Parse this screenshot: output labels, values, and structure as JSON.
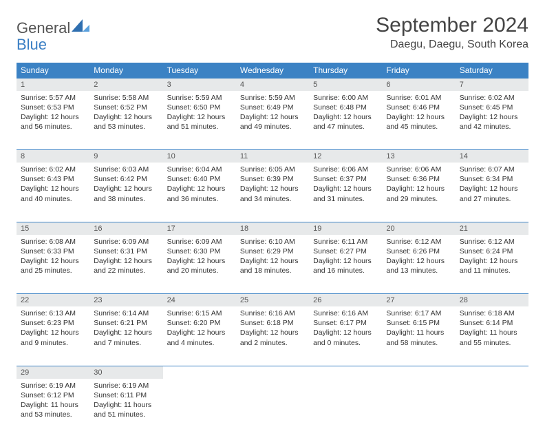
{
  "logo": {
    "general": "General",
    "blue": "Blue"
  },
  "title": "September 2024",
  "location": "Daegu, Daegu, South Korea",
  "colors": {
    "header_bg": "#3b82c4",
    "header_text": "#ffffff",
    "daynum_bg": "#e7e9ea",
    "row_border": "#3b82c4",
    "page_bg": "#ffffff",
    "logo_blue": "#3b7fc4",
    "text": "#333333"
  },
  "weekdays": [
    "Sunday",
    "Monday",
    "Tuesday",
    "Wednesday",
    "Thursday",
    "Friday",
    "Saturday"
  ],
  "weeks": [
    [
      {
        "n": "1",
        "sunrise": "Sunrise: 5:57 AM",
        "sunset": "Sunset: 6:53 PM",
        "daylight": "Daylight: 12 hours and 56 minutes."
      },
      {
        "n": "2",
        "sunrise": "Sunrise: 5:58 AM",
        "sunset": "Sunset: 6:52 PM",
        "daylight": "Daylight: 12 hours and 53 minutes."
      },
      {
        "n": "3",
        "sunrise": "Sunrise: 5:59 AM",
        "sunset": "Sunset: 6:50 PM",
        "daylight": "Daylight: 12 hours and 51 minutes."
      },
      {
        "n": "4",
        "sunrise": "Sunrise: 5:59 AM",
        "sunset": "Sunset: 6:49 PM",
        "daylight": "Daylight: 12 hours and 49 minutes."
      },
      {
        "n": "5",
        "sunrise": "Sunrise: 6:00 AM",
        "sunset": "Sunset: 6:48 PM",
        "daylight": "Daylight: 12 hours and 47 minutes."
      },
      {
        "n": "6",
        "sunrise": "Sunrise: 6:01 AM",
        "sunset": "Sunset: 6:46 PM",
        "daylight": "Daylight: 12 hours and 45 minutes."
      },
      {
        "n": "7",
        "sunrise": "Sunrise: 6:02 AM",
        "sunset": "Sunset: 6:45 PM",
        "daylight": "Daylight: 12 hours and 42 minutes."
      }
    ],
    [
      {
        "n": "8",
        "sunrise": "Sunrise: 6:02 AM",
        "sunset": "Sunset: 6:43 PM",
        "daylight": "Daylight: 12 hours and 40 minutes."
      },
      {
        "n": "9",
        "sunrise": "Sunrise: 6:03 AM",
        "sunset": "Sunset: 6:42 PM",
        "daylight": "Daylight: 12 hours and 38 minutes."
      },
      {
        "n": "10",
        "sunrise": "Sunrise: 6:04 AM",
        "sunset": "Sunset: 6:40 PM",
        "daylight": "Daylight: 12 hours and 36 minutes."
      },
      {
        "n": "11",
        "sunrise": "Sunrise: 6:05 AM",
        "sunset": "Sunset: 6:39 PM",
        "daylight": "Daylight: 12 hours and 34 minutes."
      },
      {
        "n": "12",
        "sunrise": "Sunrise: 6:06 AM",
        "sunset": "Sunset: 6:37 PM",
        "daylight": "Daylight: 12 hours and 31 minutes."
      },
      {
        "n": "13",
        "sunrise": "Sunrise: 6:06 AM",
        "sunset": "Sunset: 6:36 PM",
        "daylight": "Daylight: 12 hours and 29 minutes."
      },
      {
        "n": "14",
        "sunrise": "Sunrise: 6:07 AM",
        "sunset": "Sunset: 6:34 PM",
        "daylight": "Daylight: 12 hours and 27 minutes."
      }
    ],
    [
      {
        "n": "15",
        "sunrise": "Sunrise: 6:08 AM",
        "sunset": "Sunset: 6:33 PM",
        "daylight": "Daylight: 12 hours and 25 minutes."
      },
      {
        "n": "16",
        "sunrise": "Sunrise: 6:09 AM",
        "sunset": "Sunset: 6:31 PM",
        "daylight": "Daylight: 12 hours and 22 minutes."
      },
      {
        "n": "17",
        "sunrise": "Sunrise: 6:09 AM",
        "sunset": "Sunset: 6:30 PM",
        "daylight": "Daylight: 12 hours and 20 minutes."
      },
      {
        "n": "18",
        "sunrise": "Sunrise: 6:10 AM",
        "sunset": "Sunset: 6:29 PM",
        "daylight": "Daylight: 12 hours and 18 minutes."
      },
      {
        "n": "19",
        "sunrise": "Sunrise: 6:11 AM",
        "sunset": "Sunset: 6:27 PM",
        "daylight": "Daylight: 12 hours and 16 minutes."
      },
      {
        "n": "20",
        "sunrise": "Sunrise: 6:12 AM",
        "sunset": "Sunset: 6:26 PM",
        "daylight": "Daylight: 12 hours and 13 minutes."
      },
      {
        "n": "21",
        "sunrise": "Sunrise: 6:12 AM",
        "sunset": "Sunset: 6:24 PM",
        "daylight": "Daylight: 12 hours and 11 minutes."
      }
    ],
    [
      {
        "n": "22",
        "sunrise": "Sunrise: 6:13 AM",
        "sunset": "Sunset: 6:23 PM",
        "daylight": "Daylight: 12 hours and 9 minutes."
      },
      {
        "n": "23",
        "sunrise": "Sunrise: 6:14 AM",
        "sunset": "Sunset: 6:21 PM",
        "daylight": "Daylight: 12 hours and 7 minutes."
      },
      {
        "n": "24",
        "sunrise": "Sunrise: 6:15 AM",
        "sunset": "Sunset: 6:20 PM",
        "daylight": "Daylight: 12 hours and 4 minutes."
      },
      {
        "n": "25",
        "sunrise": "Sunrise: 6:16 AM",
        "sunset": "Sunset: 6:18 PM",
        "daylight": "Daylight: 12 hours and 2 minutes."
      },
      {
        "n": "26",
        "sunrise": "Sunrise: 6:16 AM",
        "sunset": "Sunset: 6:17 PM",
        "daylight": "Daylight: 12 hours and 0 minutes."
      },
      {
        "n": "27",
        "sunrise": "Sunrise: 6:17 AM",
        "sunset": "Sunset: 6:15 PM",
        "daylight": "Daylight: 11 hours and 58 minutes."
      },
      {
        "n": "28",
        "sunrise": "Sunrise: 6:18 AM",
        "sunset": "Sunset: 6:14 PM",
        "daylight": "Daylight: 11 hours and 55 minutes."
      }
    ],
    [
      {
        "n": "29",
        "sunrise": "Sunrise: 6:19 AM",
        "sunset": "Sunset: 6:12 PM",
        "daylight": "Daylight: 11 hours and 53 minutes."
      },
      {
        "n": "30",
        "sunrise": "Sunrise: 6:19 AM",
        "sunset": "Sunset: 6:11 PM",
        "daylight": "Daylight: 11 hours and 51 minutes."
      },
      null,
      null,
      null,
      null,
      null
    ]
  ]
}
